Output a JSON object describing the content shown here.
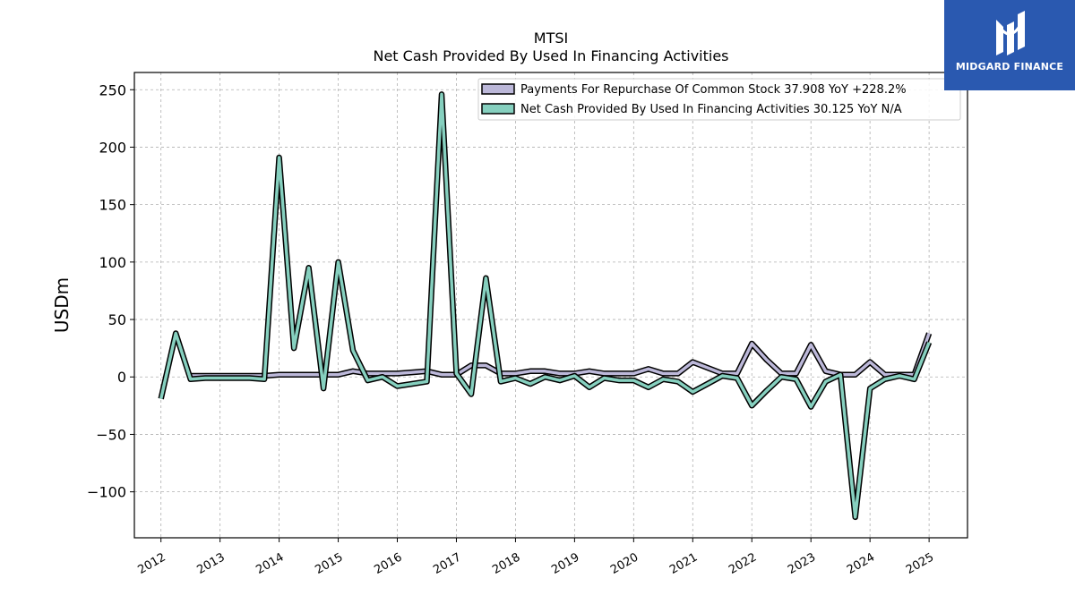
{
  "chart_data": {
    "type": "line",
    "title": "MTSI",
    "subtitle": "Net Cash Provided By Used In Financing Activities",
    "ylabel": "USDm",
    "xlabel": "",
    "ylim": [
      -140,
      265
    ],
    "xlim": [
      2011.55,
      2025.65
    ],
    "yticks": [
      -100,
      -50,
      0,
      50,
      100,
      150,
      200,
      250
    ],
    "ytick_labels": [
      "−100",
      "−50",
      "0",
      "50",
      "100",
      "150",
      "200",
      "250"
    ],
    "xticks": [
      2012,
      2013,
      2014,
      2015,
      2016,
      2017,
      2018,
      2019,
      2020,
      2021,
      2022,
      2023,
      2024,
      2025
    ],
    "xtick_labels": [
      "2012",
      "2013",
      "2014",
      "2015",
      "2016",
      "2017",
      "2018",
      "2019",
      "2020",
      "2021",
      "2022",
      "2023",
      "2024",
      "2025"
    ],
    "grid": true,
    "legend_position": "top-right",
    "series": [
      {
        "name": "Payments For Repurchase Of Common Stock",
        "legend_label": "Payments For Repurchase Of Common Stock  37.908 YoY +228.2%",
        "color": "#bcb8d9",
        "x": [
          2012.0,
          2012.25,
          2012.5,
          2012.75,
          2013.0,
          2013.25,
          2013.5,
          2013.75,
          2014.0,
          2014.25,
          2014.5,
          2014.75,
          2015.0,
          2015.25,
          2015.5,
          2015.75,
          2016.0,
          2016.25,
          2016.5,
          2016.75,
          2017.0,
          2017.25,
          2017.5,
          2017.75,
          2018.0,
          2018.25,
          2018.5,
          2018.75,
          2019.0,
          2019.25,
          2019.5,
          2019.75,
          2020.0,
          2020.25,
          2020.5,
          2020.75,
          2021.0,
          2021.25,
          2021.5,
          2021.75,
          2022.0,
          2022.25,
          2022.5,
          2022.75,
          2023.0,
          2023.25,
          2023.5,
          2023.75,
          2024.0,
          2024.25,
          2024.5,
          2024.75,
          2025.0
        ],
        "values": [
          null,
          null,
          1,
          1,
          1,
          1,
          1,
          1,
          2,
          2,
          2,
          2,
          2,
          5,
          3,
          3,
          3,
          4,
          5,
          2,
          2,
          10,
          10,
          3,
          3,
          5,
          5,
          3,
          3,
          5,
          3,
          3,
          3,
          7,
          3,
          3,
          13,
          8,
          3,
          3,
          29,
          15,
          3,
          3,
          28,
          5,
          2,
          2,
          13,
          2,
          2,
          2,
          38
        ]
      },
      {
        "name": "Net Cash Provided By Used In Financing Activities",
        "legend_label": "Net Cash Provided By Used In Financing Activities  30.125 YoY N/A",
        "color": "#86d0bf",
        "x": [
          2012.0,
          2012.25,
          2012.5,
          2012.75,
          2013.0,
          2013.25,
          2013.5,
          2013.75,
          2014.0,
          2014.25,
          2014.5,
          2014.75,
          2015.0,
          2015.25,
          2015.5,
          2015.75,
          2016.0,
          2016.25,
          2016.5,
          2016.75,
          2017.0,
          2017.25,
          2017.5,
          2017.75,
          2018.0,
          2018.25,
          2018.5,
          2018.75,
          2019.0,
          2019.25,
          2019.5,
          2019.75,
          2020.0,
          2020.25,
          2020.5,
          2020.75,
          2021.0,
          2021.25,
          2021.5,
          2021.75,
          2022.0,
          2022.25,
          2022.5,
          2022.75,
          2023.0,
          2023.25,
          2023.5,
          2023.75,
          2024.0,
          2024.25,
          2024.5,
          2024.75,
          2025.0
        ],
        "values": [
          -19,
          38,
          -2,
          -1,
          -1,
          -1,
          -1,
          -2,
          191,
          25,
          95,
          -10,
          100,
          23,
          -3,
          0,
          -8,
          -6,
          -4,
          246,
          3,
          -15,
          86,
          -4,
          -1,
          -6,
          0,
          -3,
          1,
          -9,
          -1,
          -3,
          -3,
          -9,
          -2,
          -4,
          -13,
          -6,
          1,
          -1,
          -25,
          -12,
          0,
          -2,
          -26,
          -4,
          2,
          -122,
          -10,
          -2,
          1,
          -2,
          30
        ]
      }
    ]
  },
  "brand": {
    "name": "MIDGARD FINANCE",
    "logo_color": "#2a59b0"
  }
}
